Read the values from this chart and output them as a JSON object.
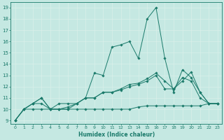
{
  "xlabel": "Humidex (Indice chaleur)",
  "xlim": [
    -0.5,
    23.5
  ],
  "ylim": [
    8.7,
    19.5
  ],
  "yticks": [
    9,
    10,
    11,
    12,
    13,
    14,
    15,
    16,
    17,
    18,
    19
  ],
  "xticks": [
    0,
    1,
    2,
    3,
    4,
    5,
    6,
    7,
    8,
    9,
    10,
    11,
    12,
    13,
    14,
    15,
    16,
    17,
    18,
    19,
    20,
    21,
    22,
    23
  ],
  "bg_color": "#c5e8e2",
  "line_color": "#1a7a6a",
  "grid_color": "#daf0ea",
  "series": {
    "line1_x": [
      0,
      1,
      2,
      3,
      4,
      5,
      6,
      7,
      8,
      9,
      10,
      11,
      12,
      13,
      14,
      15,
      16,
      17,
      18,
      19,
      20,
      21,
      22,
      23
    ],
    "line1_y": [
      9.0,
      10.0,
      10.5,
      10.5,
      10.0,
      10.5,
      10.5,
      10.5,
      11.0,
      13.2,
      13.0,
      15.5,
      15.7,
      16.0,
      14.5,
      18.0,
      19.0,
      14.5,
      11.5,
      13.5,
      12.8,
      11.5,
      10.5,
      10.5
    ],
    "line2_x": [
      0,
      1,
      2,
      3,
      4,
      5,
      6,
      7,
      8,
      9,
      10,
      11,
      12,
      13,
      14,
      15,
      16,
      17,
      18,
      19,
      20,
      21,
      22,
      23
    ],
    "line2_y": [
      9.0,
      10.0,
      10.5,
      11.0,
      10.0,
      10.0,
      10.2,
      10.5,
      11.0,
      11.0,
      11.5,
      11.5,
      11.8,
      12.2,
      12.3,
      12.7,
      13.2,
      12.5,
      11.8,
      12.5,
      13.3,
      11.5,
      10.5,
      10.5
    ],
    "line3_x": [
      0,
      1,
      2,
      3,
      4,
      5,
      6,
      7,
      8,
      9,
      10,
      11,
      12,
      13,
      14,
      15,
      16,
      17,
      18,
      19,
      20,
      21,
      22,
      23
    ],
    "line3_y": [
      9.0,
      10.0,
      10.5,
      11.0,
      10.0,
      10.0,
      10.0,
      10.5,
      11.0,
      11.0,
      11.5,
      11.5,
      11.7,
      12.0,
      12.2,
      12.5,
      13.0,
      11.8,
      11.8,
      12.8,
      12.5,
      11.0,
      10.5,
      10.5
    ],
    "line4_x": [
      0,
      1,
      2,
      3,
      4,
      5,
      6,
      7,
      8,
      9,
      10,
      11,
      12,
      13,
      14,
      15,
      16,
      17,
      18,
      19,
      20,
      21,
      22,
      23
    ],
    "line4_y": [
      9.0,
      10.0,
      10.0,
      10.0,
      10.0,
      10.0,
      10.0,
      10.0,
      10.0,
      10.0,
      10.0,
      10.0,
      10.0,
      10.0,
      10.2,
      10.3,
      10.3,
      10.3,
      10.3,
      10.3,
      10.3,
      10.3,
      10.5,
      10.5
    ]
  }
}
